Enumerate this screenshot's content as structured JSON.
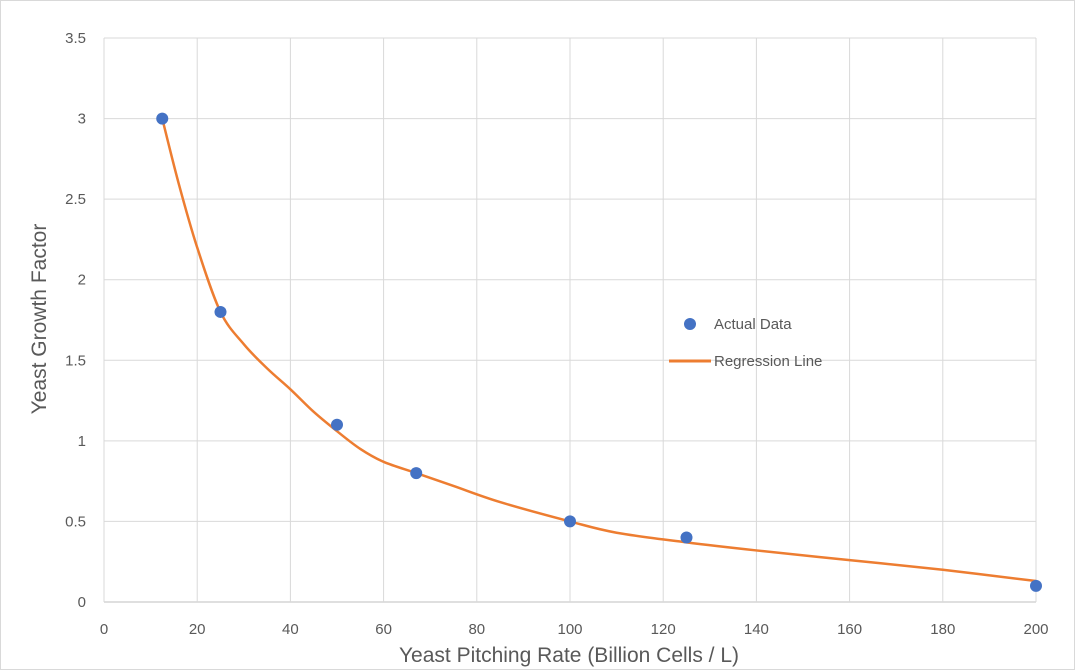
{
  "chart_data": {
    "type": "scatter",
    "title": "",
    "xlabel": "Yeast Pitching Rate (Billion Cells / L)",
    "ylabel": "Yeast Growth Factor",
    "xlim": [
      0,
      200
    ],
    "ylim": [
      0,
      3.5
    ],
    "xticks": [
      0,
      20,
      40,
      60,
      80,
      100,
      120,
      140,
      160,
      180,
      200
    ],
    "yticks": [
      0,
      0.5,
      1,
      1.5,
      2,
      2.5,
      3,
      3.5
    ],
    "xtick_labels": [
      "0",
      "20",
      "40",
      "60",
      "80",
      "100",
      "120",
      "140",
      "160",
      "180",
      "200"
    ],
    "ytick_labels": [
      "0",
      "0.5",
      "1",
      "1.5",
      "2",
      "2.5",
      "3",
      "3.5"
    ],
    "grid": true,
    "legend_position": "right",
    "series": [
      {
        "name": "Actual Data",
        "kind": "scatter",
        "color": "#4472c4",
        "x": [
          12.5,
          25,
          50,
          67,
          100,
          125,
          200
        ],
        "y": [
          3.0,
          1.8,
          1.1,
          0.8,
          0.5,
          0.4,
          0.1
        ]
      },
      {
        "name": "Regression Line",
        "kind": "line",
        "color": "#ed7d31",
        "x": [
          12.5,
          16,
          20,
          25,
          30,
          35,
          40,
          45,
          50,
          55,
          60,
          67,
          75,
          85,
          100,
          110,
          125,
          140,
          160,
          180,
          200
        ],
        "y": [
          3.0,
          2.6,
          2.2,
          1.8,
          1.6,
          1.45,
          1.32,
          1.18,
          1.06,
          0.95,
          0.87,
          0.8,
          0.72,
          0.62,
          0.5,
          0.43,
          0.37,
          0.32,
          0.26,
          0.2,
          0.13
        ]
      }
    ]
  }
}
